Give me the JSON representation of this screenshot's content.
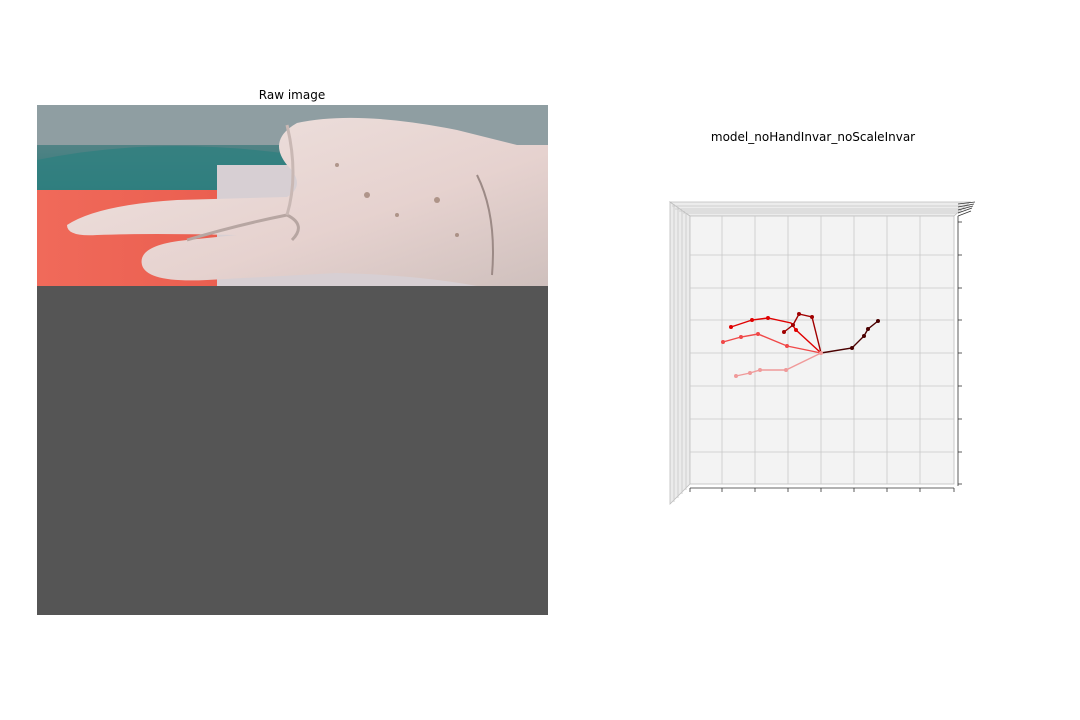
{
  "raw_panel": {
    "title": "Raw image",
    "photo_description_icon": "gloved-hand-photo"
  },
  "model_panel": {
    "title": "model_noHandInvar_noScaleInvar",
    "pane_color": "#f3f3f3",
    "grid_color": "#c8c8c8"
  },
  "colors": {
    "padding_gray": "#555555",
    "thumb": "#4a0000",
    "index": "#a00000",
    "middle": "#e00000",
    "ring": "#f04848",
    "pinky": "#f09a9a"
  }
}
